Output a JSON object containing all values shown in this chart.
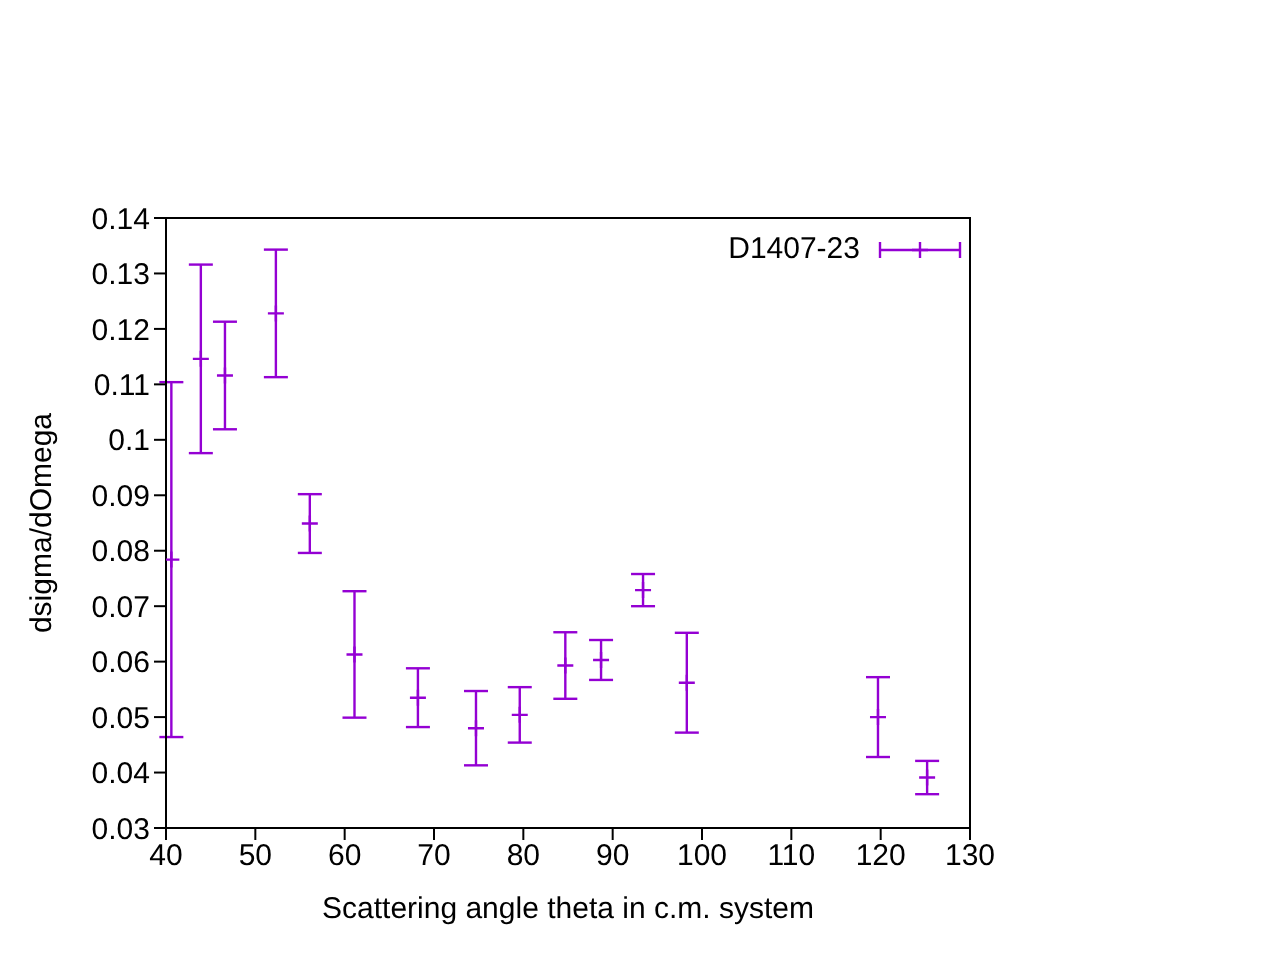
{
  "chart_data": {
    "type": "scatter",
    "xlabel": "Scattering angle theta in c.m. system",
    "ylabel": "dsigma/dOmega",
    "xlim": [
      40,
      130
    ],
    "xticks": [
      40,
      50,
      60,
      70,
      80,
      90,
      100,
      110,
      120,
      130
    ],
    "ylim": [
      0.03,
      0.14
    ],
    "yticks": [
      0.03,
      0.04,
      0.05,
      0.06,
      0.07,
      0.08,
      0.09,
      0.1,
      0.11,
      0.12,
      0.13,
      0.14
    ],
    "grid": false,
    "legend": "top right",
    "marker": "cross",
    "series": [
      {
        "name": "D1407-23",
        "color": "#9400d3",
        "x": [
          40.6,
          43.9,
          46.6,
          52.3,
          56.1,
          61.1,
          68.2,
          74.7,
          79.6,
          84.7,
          88.7,
          93.4,
          98.3,
          119.7,
          125.2
        ],
        "values": [
          0.0784,
          0.1146,
          0.1116,
          0.1228,
          0.0849,
          0.0613,
          0.0535,
          0.048,
          0.0504,
          0.0593,
          0.0603,
          0.0729,
          0.0562,
          0.05,
          0.0391
        ],
        "errors": [
          0.032,
          0.017,
          0.0097,
          0.0115,
          0.0053,
          0.0114,
          0.0053,
          0.0067,
          0.005,
          0.006,
          0.0036,
          0.0029,
          0.009,
          0.0072,
          0.003
        ]
      }
    ]
  }
}
